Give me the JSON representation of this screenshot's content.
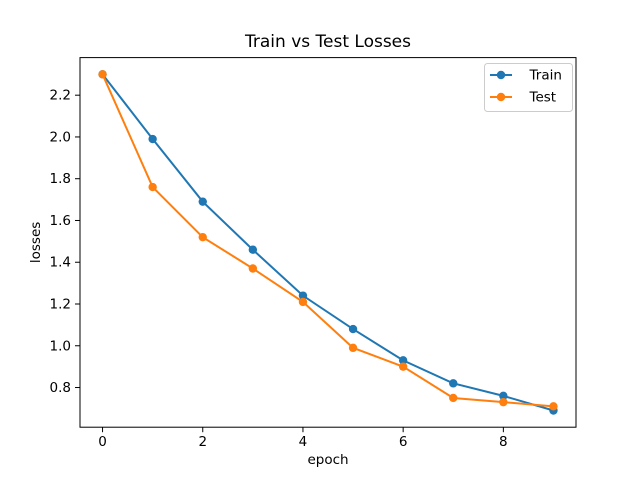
{
  "chart_data": {
    "type": "line",
    "title": "Train vs Test Losses",
    "xlabel": "epoch",
    "ylabel": "losses",
    "x": [
      0,
      1,
      2,
      3,
      4,
      5,
      6,
      7,
      8,
      9
    ],
    "series": [
      {
        "name": "Train",
        "color": "#1f77b4",
        "marker": "circle",
        "values": [
          2.3,
          1.99,
          1.69,
          1.46,
          1.24,
          1.08,
          0.93,
          0.82,
          0.76,
          0.69
        ]
      },
      {
        "name": "Test",
        "color": "#ff7f0e",
        "marker": "circle",
        "values": [
          2.3,
          1.76,
          1.52,
          1.37,
          1.21,
          0.99,
          0.9,
          0.75,
          0.73,
          0.71
        ]
      }
    ],
    "xlim": [
      -0.45,
      9.45
    ],
    "ylim": [
      0.61,
      2.38
    ],
    "xticks": [
      0,
      2,
      4,
      6,
      8
    ],
    "xtick_labels": [
      "0",
      "2",
      "4",
      "6",
      "8"
    ],
    "yticks": [
      0.8,
      1.0,
      1.2,
      1.4,
      1.6,
      1.8,
      2.0,
      2.2
    ],
    "ytick_labels": [
      "0.8",
      "1.0",
      "1.2",
      "1.4",
      "1.6",
      "1.8",
      "2.0",
      "2.2"
    ],
    "grid": false,
    "legend": {
      "position": "upper right",
      "entries": [
        "Train",
        "Test"
      ]
    },
    "frame_color": "#000000",
    "background_color": "#ffffff",
    "legend_border_color": "#cccccc"
  }
}
